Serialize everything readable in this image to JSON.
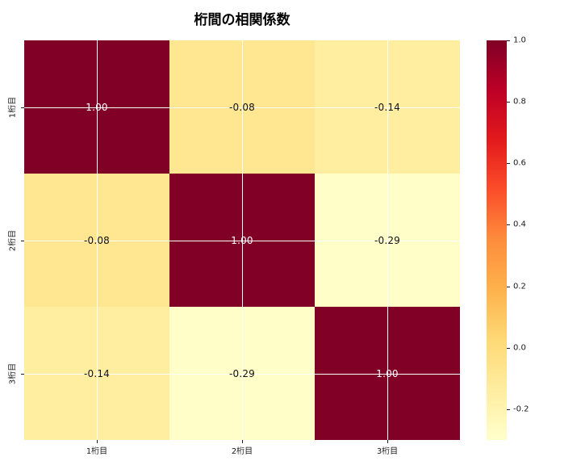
{
  "figure": {
    "background": "#ffffff"
  },
  "chart_data": {
    "type": "heatmap",
    "title": "桁間の相関係数",
    "categories": [
      "1桁目",
      "2桁目",
      "3桁目"
    ],
    "values": [
      [
        1.0,
        -0.08,
        -0.14
      ],
      [
        -0.08,
        1.0,
        -0.29
      ],
      [
        -0.14,
        -0.29,
        1.0
      ]
    ],
    "cell_labels": [
      [
        "1.00",
        "-0.08",
        "-0.14"
      ],
      [
        "-0.08",
        "1.00",
        "-0.29"
      ],
      [
        "-0.14",
        "-0.29",
        "1.00"
      ]
    ],
    "cell_colors": [
      [
        "#800026",
        "#ffe691",
        "#ffeda0"
      ],
      [
        "#ffe691",
        "#800026",
        "#fffec9"
      ],
      [
        "#ffeda0",
        "#fffec9",
        "#800026"
      ]
    ],
    "cell_text_colors": [
      [
        "#ffffff",
        "#111111",
        "#111111"
      ],
      [
        "#111111",
        "#ffffff",
        "#111111"
      ],
      [
        "#111111",
        "#111111",
        "#ffffff"
      ]
    ],
    "colormap": "YlOrRd",
    "grid": true,
    "grid_color": "#ffffff",
    "colorbar": {
      "vmin": -0.3,
      "vmax": 1.0,
      "tick_labels": [
        "1.0",
        "0.8",
        "0.6",
        "0.4",
        "0.2",
        "0.0",
        "-0.2"
      ],
      "tick_values": [
        1.0,
        0.8,
        0.6,
        0.4,
        0.2,
        0.0,
        -0.2
      ],
      "gradient_top_to_bottom": [
        "#800026",
        "#bd0026",
        "#e31a1c",
        "#fc4e2a",
        "#fd8d3c",
        "#feb24c",
        "#fed976",
        "#ffeda0",
        "#ffffcc"
      ]
    }
  }
}
